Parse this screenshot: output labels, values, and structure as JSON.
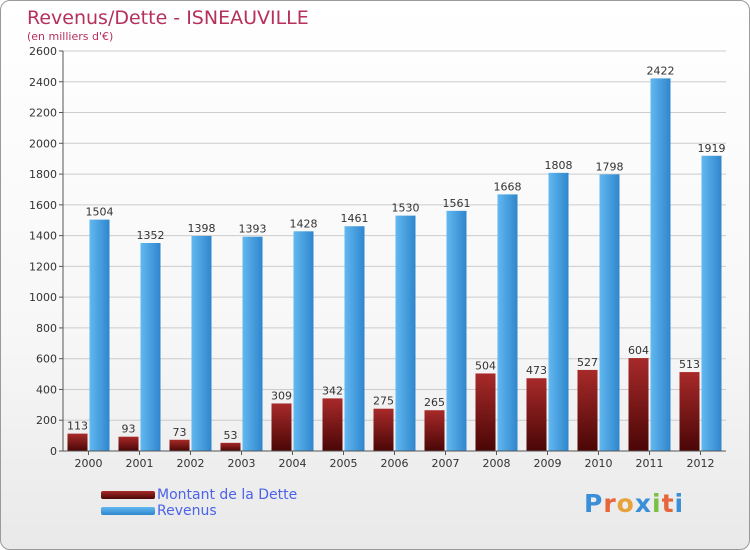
{
  "title": "Revenus/Dette - ISNEAUVILLE",
  "subtitle": "(en milliers d'€)",
  "colors": {
    "dette": "#7a0f0f",
    "revenus": "#4aa6e8",
    "axis": "#555555",
    "grid": "#cccccc"
  },
  "logo": {
    "letters": [
      "P",
      "r",
      "o",
      "x",
      "i",
      "t",
      "i"
    ],
    "colors": [
      "#3a8fd8",
      "#e8643a",
      "#e8a23a",
      "#3a8fd8",
      "#7ac043",
      "#e8643a",
      "#3a8fd8"
    ]
  },
  "chart_data": {
    "type": "bar",
    "title": "Revenus/Dette - ISNEAUVILLE",
    "ylabel": "(en milliers d'€)",
    "categories": [
      "2000",
      "2001",
      "2002",
      "2003",
      "2004",
      "2005",
      "2006",
      "2007",
      "2008",
      "2009",
      "2010",
      "2011",
      "2012"
    ],
    "series": [
      {
        "name": "Montant de la Dette",
        "values": [
          113,
          93,
          73,
          53,
          309,
          342,
          275,
          265,
          504,
          473,
          527,
          604,
          513
        ]
      },
      {
        "name": "Revenus",
        "values": [
          1504,
          1352,
          1398,
          1393,
          1428,
          1461,
          1530,
          1561,
          1668,
          1808,
          1798,
          2422,
          1919
        ]
      }
    ],
    "ylim": [
      0,
      2600
    ],
    "yticks": [
      0,
      200,
      400,
      600,
      800,
      1000,
      1200,
      1400,
      1600,
      1800,
      2000,
      2200,
      2400,
      2600
    ],
    "grid": true,
    "legend": "bottom-left"
  }
}
